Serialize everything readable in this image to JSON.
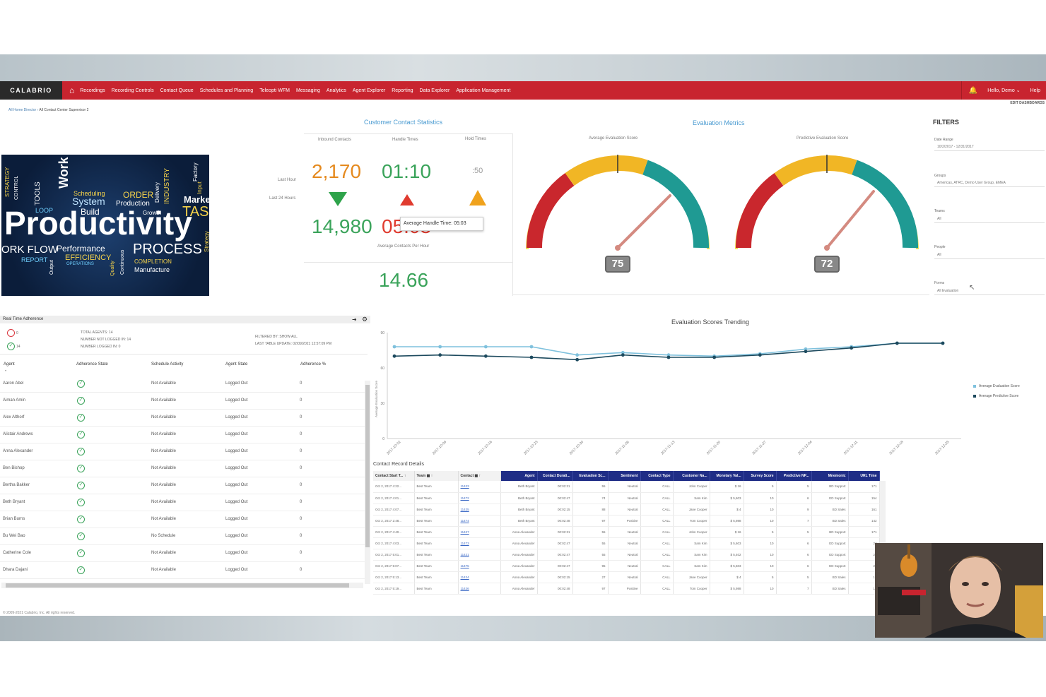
{
  "app": {
    "logo": "CALABRIO",
    "nav": [
      "Recordings",
      "Recording Controls",
      "Contact Queue",
      "Schedules and Planning",
      "Teleopti WFM",
      "Messaging",
      "Analytics",
      "Agent Explorer",
      "Reporting",
      "Data Explorer",
      "Application Management"
    ],
    "user_greeting": "Hello, Demo",
    "help": "Help",
    "edit_dashboards": "EDIT DASHBOARDS",
    "breadcrumb": [
      "All Home Director",
      "All Contact Center Supervisor 2"
    ]
  },
  "wordcloud": {
    "main": "Productivity",
    "words": [
      "Work",
      "System",
      "Build",
      "Performance",
      "PROCESS",
      "EFFICIENCY",
      "REPORT",
      "ORDER",
      "Production",
      "Market",
      "TASK",
      "Scheduling",
      "Growth",
      "Manufacture",
      "COMPLETION",
      "INDUSTRY",
      "ORK FLOW",
      "STRATEGY",
      "TOOLS",
      "LOOP",
      "OPERATIONS",
      "CONTROL",
      "Input",
      "Factory",
      "Strategy",
      "Continuous",
      "Output",
      "Quality",
      "Delivery"
    ]
  },
  "contact_stats": {
    "title": "Customer Contact Statistics",
    "col_headers": [
      "Inbound Contacts",
      "Handle Times",
      "Hold Times"
    ],
    "row_labels": [
      "Last Hour",
      "Last 24 Hours"
    ],
    "last_hour": {
      "inbound": "2,170",
      "handle": "01:10",
      "hold": ":50"
    },
    "last_24": {
      "inbound": "14,980",
      "handle": "05:03"
    },
    "tooltip": "Average Handle Time: 05:03",
    "avg_per_hour_label": "Average Contacts Per Hour",
    "avg_per_hour": "14.66",
    "colors": {
      "inbound_hour": "#e58a1f",
      "green": "#3aa35a",
      "red": "#e03b2f",
      "orange": "#f0a21c"
    }
  },
  "evaluation": {
    "title": "Evaluation Metrics",
    "gauges": [
      {
        "label": "Average Evaluation Score",
        "value": 75
      },
      {
        "label": "Predictive Evaluation Score",
        "value": 72
      }
    ]
  },
  "filters": {
    "title": "FILTERS",
    "items": [
      {
        "label": "Date Range",
        "value": "10/2/2017 - 12/31/2017"
      },
      {
        "label": "Groups",
        "value": "Americas, ATRC, Demo User Group, EMEA"
      },
      {
        "label": "Teams",
        "value": "All"
      },
      {
        "label": "People",
        "value": "All"
      },
      {
        "label": "Forms",
        "value": "All Evaluation"
      }
    ]
  },
  "rta": {
    "title": "Real Time Adherence",
    "count_out": "0",
    "count_in": "14",
    "summary": [
      "TOTAL AGENTS: 14",
      "NUMBER NOT LOGGED IN: 14",
      "NUMBER LOGGED IN: 0"
    ],
    "filtered": "FILTERED BY: SHOW ALL",
    "last_update": "LAST TABLE UPDATE: 02/09/2021 12:57:09 PM",
    "columns": [
      "Agent",
      "Adherence State",
      "Schedule Activity",
      "Agent State",
      "Adherence %"
    ],
    "rows": [
      {
        "agent": "Aaron Abel",
        "activity": "Not Available",
        "state": "Logged Out",
        "pct": "0"
      },
      {
        "agent": "Aiman Amin",
        "activity": "Not Available",
        "state": "Logged Out",
        "pct": "0"
      },
      {
        "agent": "Alex Althorf",
        "activity": "Not Available",
        "state": "Logged Out",
        "pct": "0"
      },
      {
        "agent": "Alistair Andrews",
        "activity": "Not Available",
        "state": "Logged Out",
        "pct": "0"
      },
      {
        "agent": "Anna Alexander",
        "activity": "Not Available",
        "state": "Logged Out",
        "pct": "0"
      },
      {
        "agent": "Ben Bishop",
        "activity": "Not Available",
        "state": "Logged Out",
        "pct": "0"
      },
      {
        "agent": "Bertha Bakker",
        "activity": "Not Available",
        "state": "Logged Out",
        "pct": "0"
      },
      {
        "agent": "Beth Bryant",
        "activity": "Not Available",
        "state": "Logged Out",
        "pct": "0"
      },
      {
        "agent": "Brian Burns",
        "activity": "Not Available",
        "state": "Logged Out",
        "pct": "0"
      },
      {
        "agent": "Bu Wei Bao",
        "activity": "No Schedule",
        "state": "Logged Out",
        "pct": "0"
      },
      {
        "agent": "Catherine Cole",
        "activity": "Not Available",
        "state": "Logged Out",
        "pct": "0"
      },
      {
        "agent": "Dhara Dajani",
        "activity": "Not Available",
        "state": "Logged Out",
        "pct": "0"
      }
    ]
  },
  "trend": {
    "title": "Evaluation Scores Trending",
    "ylabel": "Average Evaluation Score",
    "legend": [
      "Average Evaluation Score",
      "Average Predictive Score"
    ]
  },
  "chart_data": {
    "type": "line",
    "title": "Evaluation Scores Trending",
    "xlabel": "",
    "ylabel": "Average Evaluation Score",
    "x": [
      "2017-10-02",
      "2017-10-09",
      "2017-10-16",
      "2017-10-23",
      "2017-10-30",
      "2017-11-06",
      "2017-11-13",
      "2017-11-20",
      "2017-11-27",
      "2017-12-04",
      "2017-12-11",
      "2017-12-18",
      "2017-12-25"
    ],
    "ylim": [
      0,
      90
    ],
    "yticks": [
      0,
      30,
      60,
      90
    ],
    "grid": false,
    "legend": "right",
    "series": [
      {
        "name": "Average Evaluation Score",
        "color": "#7fc1dd",
        "values": [
          78,
          78,
          78,
          78,
          71,
          73,
          71,
          70,
          72,
          76,
          78,
          81,
          81
        ]
      },
      {
        "name": "Average Predictive Score",
        "color": "#1d4a5e",
        "values": [
          70,
          71,
          70,
          69,
          67,
          71,
          69,
          69,
          71,
          74,
          77,
          81,
          81
        ]
      }
    ]
  },
  "crd": {
    "title": "Contact Record Details",
    "columns": [
      "Contact Start T...",
      "Team",
      "Contact",
      "Agent",
      "Contact Durati...",
      "Evaluation Sc...",
      "Sentiment",
      "Contact Type",
      "Customer Na...",
      "Monetary Val...",
      "Survey Score",
      "Predictive NP...",
      "Mnemonic",
      "URL Time"
    ],
    "rows": [
      [
        "Oct 2, 2017 4:22...",
        "Best Team",
        "11423",
        "Beth Bryant",
        "00:02:31",
        "55",
        "Neutral",
        "CALL",
        "John Cooper",
        "$ 16",
        "5",
        "5",
        "BD Support",
        "171"
      ],
      [
        "Oct 2, 2017 4:01...",
        "Best Team",
        "11472",
        "Beth Bryant",
        "00:02:47",
        "74",
        "Neutral",
        "CALL",
        "Sam Kim",
        "$ 5,603",
        "10",
        "6",
        "GD Support",
        "154"
      ],
      [
        "Oct 2, 2017 4:07...",
        "Best Team",
        "11425",
        "Beth Bryant",
        "00:02:15",
        "88",
        "Neutral",
        "CALL",
        "Jane Cooper",
        "$ 4",
        "10",
        "9",
        "BD Sales",
        "161"
      ],
      [
        "Oct 2, 2017 2:48...",
        "Best Team",
        "11474",
        "Beth Bryant",
        "00:02:48",
        "97",
        "Positive",
        "CALL",
        "Tom Cooper",
        "$ 5,988",
        "10",
        "7",
        "BD Sales",
        "142"
      ],
      [
        "Oct 2, 2017 4:40...",
        "Best Team",
        "11427",
        "Anna Alexander",
        "00:02:31",
        "55",
        "Neutral",
        "CALL",
        "John Cooper",
        "$ 16",
        "5",
        "5",
        "BD Support",
        "171"
      ],
      [
        "Oct 2, 2017 4:03...",
        "Best Team",
        "11473",
        "Anna Alexander",
        "00:02:47",
        "55",
        "Neutral",
        "CALL",
        "Sam Kim",
        "$ 5,603",
        "10",
        "6",
        "GD Support",
        "24"
      ],
      [
        "Oct 2, 2017 5:01...",
        "Best Team",
        "11421",
        "Anna Alexander",
        "00:02:47",
        "55",
        "Neutral",
        "CALL",
        "Sam Kim",
        "$ 5,402",
        "10",
        "6",
        "GD Support",
        "24"
      ],
      [
        "Oct 2, 2017 5:07...",
        "Best Team",
        "11475",
        "Anna Alexander",
        "00:02:47",
        "95",
        "Neutral",
        "CALL",
        "Sam Kim",
        "$ 5,603",
        "10",
        "6",
        "GD Support",
        "24"
      ],
      [
        "Oct 2, 2017 5:13...",
        "Best Team",
        "11424",
        "Anna Alexander",
        "00:02:15",
        "27",
        "Neutral",
        "CALL",
        "Jane Cooper",
        "$ 4",
        "5",
        "5",
        "BD Sales",
        "13"
      ],
      [
        "Oct 2, 2017 5:19...",
        "Best Team",
        "11426",
        "Anna Alexander",
        "00:02:48",
        "97",
        "Positive",
        "CALL",
        "Tom Cooper",
        "$ 5,988",
        "10",
        "7",
        "BD Sales",
        "13"
      ]
    ]
  },
  "footer": "© 2009-2021 Calabrio, Inc. All rights reserved."
}
